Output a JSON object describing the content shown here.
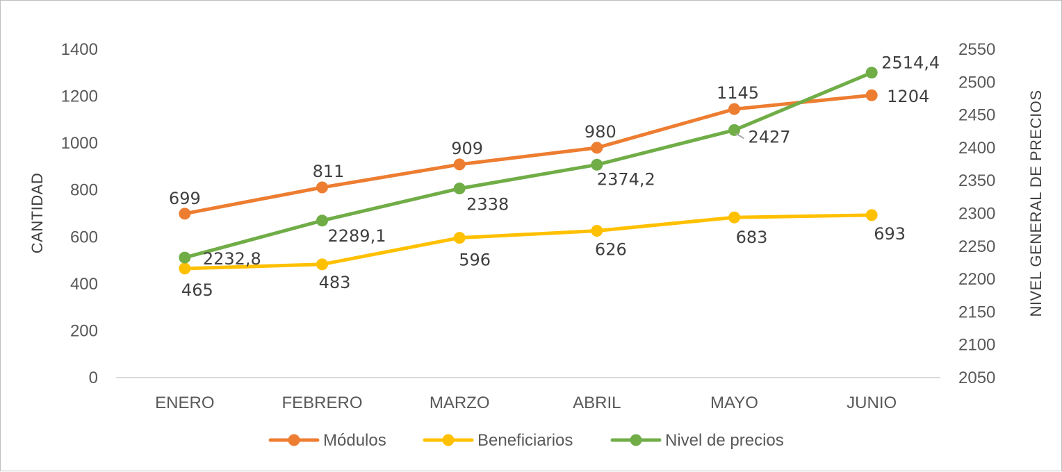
{
  "chart_data": {
    "type": "line",
    "title": "",
    "categories": [
      "ENERO",
      "FEBRERO",
      "MARZO",
      "ABRIL",
      "MAYO",
      "JUNIO"
    ],
    "y_left": {
      "label": "CANTIDAD",
      "range": [
        0,
        1400
      ],
      "ticks": [
        "0",
        "200",
        "400",
        "600",
        "800",
        "1000",
        "1200",
        "1400"
      ]
    },
    "y_right": {
      "label": "NIVEL GENERAL DE PRECIOS",
      "range": [
        2050,
        2550
      ],
      "ticks": [
        "2050",
        "2100",
        "2150",
        "2200",
        "2250",
        "2300",
        "2350",
        "2400",
        "2450",
        "2500",
        "2550"
      ]
    },
    "series": [
      {
        "name": "Módulos",
        "axis": "left",
        "color": "#ED7D31",
        "values": [
          699,
          811,
          909,
          980,
          1145,
          1204
        ],
        "labels": [
          "699",
          "811",
          "909",
          "980",
          "1145",
          "1204"
        ]
      },
      {
        "name": "Beneficiarios",
        "axis": "left",
        "color": "#FFC000",
        "values": [
          465,
          483,
          596,
          626,
          683,
          693
        ],
        "labels": [
          "465",
          "483",
          "596",
          "626",
          "683",
          "693"
        ]
      },
      {
        "name": "Nivel de precios",
        "axis": "right",
        "color": "#70AD47",
        "values": [
          2232.8,
          2289.1,
          2338,
          2374.2,
          2427,
          2514.4
        ],
        "labels": [
          "2232,8",
          "2289,1",
          "2338",
          "2374,2",
          "2427",
          "2514,4"
        ]
      }
    ],
    "legend_position": "bottom",
    "grid": false
  }
}
